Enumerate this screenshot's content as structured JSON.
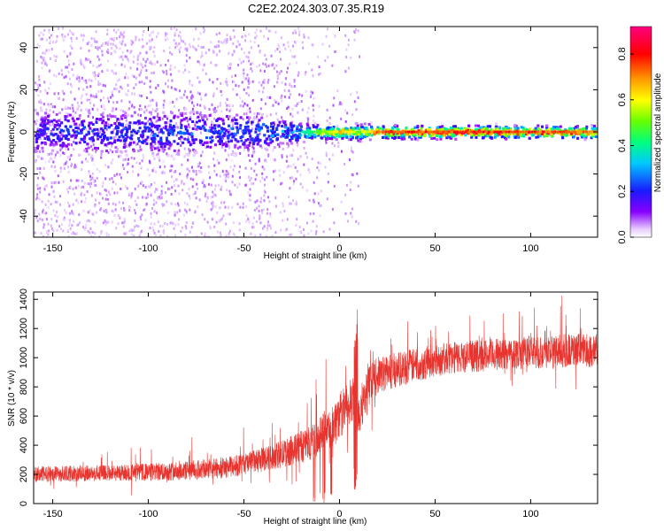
{
  "title": "C2E2.2024.303.07.35.R19",
  "colors": {
    "snr_line": "#e8342e",
    "axis": "#000000",
    "background": "#ffffff"
  },
  "chart_data": [
    {
      "type": "heatmap",
      "xlabel": "Height of straight line (km)",
      "ylabel": "Frequency (Hz)",
      "xlim": [
        -160,
        135
      ],
      "ylim": [
        -50,
        50
      ],
      "xticks": [
        -150,
        -100,
        -50,
        0,
        50,
        100
      ],
      "yticks": [
        -40,
        -20,
        0,
        20,
        40
      ],
      "colorbar": {
        "label": "Normalized spectral amplitude",
        "range": [
          0,
          0.92
        ],
        "ticks": [
          "0.0",
          "0.2",
          "0.4",
          "0.6",
          "0.8"
        ],
        "colormap": "rainbow (white-violet-blue-cyan-green-yellow-red-magenta)"
      },
      "carrier_band": [
        {
          "x": -160,
          "freq_spread_hz": 6,
          "amplitude": 0.22
        },
        {
          "x": -100,
          "freq_spread_hz": 6,
          "amplitude": 0.25
        },
        {
          "x": -50,
          "freq_spread_hz": 5,
          "amplitude": 0.28
        },
        {
          "x": -30,
          "freq_spread_hz": 3,
          "amplitude": 0.4
        },
        {
          "x": -15,
          "freq_spread_hz": 2,
          "amplitude": 0.5
        },
        {
          "x": 0,
          "freq_spread_hz": 1.5,
          "amplitude": 0.8
        },
        {
          "x": 10,
          "freq_spread_hz": 2,
          "amplitude": 0.6
        },
        {
          "x": 20,
          "freq_spread_hz": 1.5,
          "amplitude": 0.85
        },
        {
          "x": 50,
          "freq_spread_hz": 1.5,
          "amplitude": 0.9
        },
        {
          "x": 100,
          "freq_spread_hz": 1.5,
          "amplitude": 0.9
        },
        {
          "x": 135,
          "freq_spread_hz": 1.5,
          "amplitude": 0.8
        }
      ],
      "noise_floor_extent_x": [
        -160,
        -10
      ]
    },
    {
      "type": "line",
      "xlabel": "Height of straight line (km)",
      "ylabel": "SNR (10 * v/v)",
      "xlim": [
        -160,
        135
      ],
      "ylim": [
        0,
        1450
      ],
      "xticks": [
        -150,
        -100,
        -50,
        0,
        50,
        100
      ],
      "yticks": [
        0,
        200,
        400,
        600,
        800,
        1000,
        1200,
        1400
      ],
      "series": [
        {
          "x": [
            -160,
            -140,
            -120,
            -100,
            -80,
            -60,
            -50,
            -40,
            -30,
            -20,
            -15,
            -10,
            -5,
            0,
            5,
            8,
            10,
            15,
            20,
            30,
            40,
            50,
            60,
            70,
            80,
            90,
            100,
            110,
            120,
            135
          ],
          "y_mean": [
            200,
            205,
            210,
            215,
            225,
            245,
            270,
            300,
            340,
            390,
            420,
            460,
            520,
            600,
            680,
            700,
            620,
            800,
            880,
            920,
            950,
            980,
            1000,
            1010,
            1020,
            1030,
            1040,
            1040,
            1050,
            1050
          ],
          "y_spread": [
            100,
            100,
            100,
            110,
            120,
            130,
            140,
            150,
            170,
            200,
            220,
            250,
            280,
            300,
            300,
            320,
            300,
            250,
            230,
            220,
            210,
            200,
            200,
            200,
            200,
            200,
            210,
            210,
            210,
            210
          ]
        }
      ]
    }
  ]
}
